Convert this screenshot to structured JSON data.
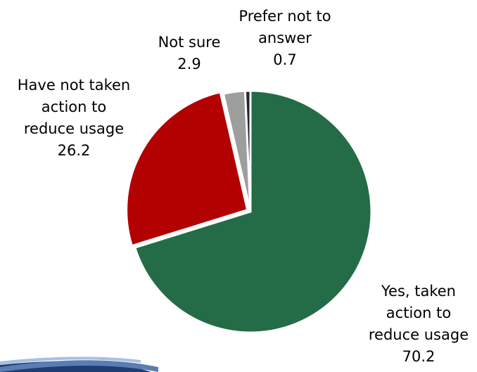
{
  "chart_data": {
    "type": "pie",
    "title": "",
    "slices": [
      {
        "label_lines": [
          "Yes, taken",
          "action to",
          "reduce usage"
        ],
        "value": 70.2,
        "value_text": "70.2",
        "color": "#246B47"
      },
      {
        "label_lines": [
          "Have not taken",
          "action to",
          "reduce usage"
        ],
        "value": 26.2,
        "value_text": "26.2",
        "color": "#B30000"
      },
      {
        "label_lines": [
          "Not sure"
        ],
        "value": 2.9,
        "value_text": "2.9",
        "color": "#9E9E9E"
      },
      {
        "label_lines": [
          "Prefer not to",
          "answer"
        ],
        "value": 0.7,
        "value_text": "0.7",
        "color": "#262626"
      }
    ],
    "start_angle_deg": 0,
    "direction": "clockwise",
    "slice_border_color": "#FFFFFF",
    "legend": "none"
  },
  "decoration": {
    "swoosh_colors": [
      "#1F3D73",
      "#5B7DB5",
      "#A9C0E0"
    ]
  }
}
